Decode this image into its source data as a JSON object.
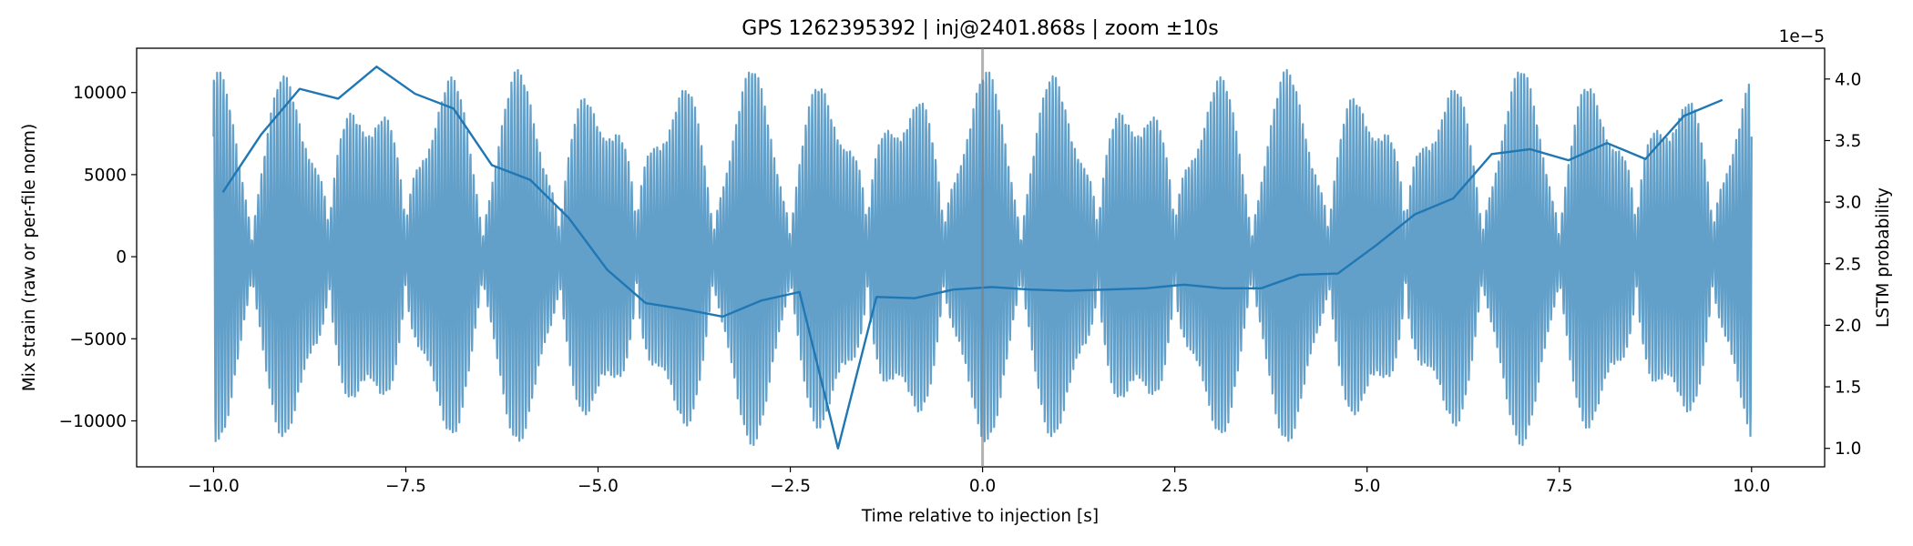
{
  "chart_data": {
    "type": "line",
    "title": "GPS 1262395392 | inj@2401.868s | zoom ±10s",
    "xlabel": "Time relative to injection [s]",
    "ylabel_left": "Mix strain (raw or per-file norm)",
    "ylabel_right": "LSTM probability",
    "right_offset_text": "1e−5",
    "xlim": [
      -11,
      10.95
    ],
    "ylim_left": [
      -12800,
      12700
    ],
    "ylim_right": [
      0.85,
      4.25
    ],
    "x_ticks": [
      -10,
      -7.5,
      -5,
      -2.5,
      0,
      2.5,
      5,
      7.5,
      10
    ],
    "x_tick_labels": [
      "−10.0",
      "−7.5",
      "−5.0",
      "−2.5",
      "0.0",
      "2.5",
      "5.0",
      "7.5",
      "10.0"
    ],
    "y_left_ticks": [
      10000,
      5000,
      0,
      -5000,
      -10000
    ],
    "y_left_tick_labels": [
      "10000",
      "5000",
      "0",
      "−5000",
      "−10000"
    ],
    "y_right_ticks": [
      4.0,
      3.5,
      3.0,
      2.5,
      2.0,
      1.5,
      1.0
    ],
    "y_right_tick_labels": [
      "4.0",
      "3.5",
      "3.0",
      "2.5",
      "2.0",
      "1.5",
      "1.0"
    ],
    "injection_marker_x": 0,
    "series": [
      {
        "name": "Mix strain",
        "axis": "left",
        "color": "#1f77b4",
        "opacity": 0.7,
        "x_range": [
          -10,
          10
        ],
        "approx_amplitude": 11500,
        "style": "oscillating"
      },
      {
        "name": "LSTM probability",
        "axis": "right",
        "color": "#1f77b4",
        "x": [
          -9.88,
          -9.38,
          -8.88,
          -8.38,
          -7.88,
          -7.38,
          -6.88,
          -6.38,
          -5.88,
          -5.38,
          -4.88,
          -4.38,
          -3.88,
          -3.38,
          -2.88,
          -2.38,
          -1.88,
          -1.38,
          -0.88,
          -0.38,
          0.12,
          0.62,
          1.12,
          1.62,
          2.12,
          2.62,
          3.12,
          3.62,
          4.12,
          4.62,
          5.12,
          5.62,
          6.12,
          6.62,
          7.12,
          7.62,
          8.12,
          8.62,
          9.12,
          9.62
        ],
        "values": [
          3.08,
          3.55,
          3.92,
          3.84,
          4.1,
          3.88,
          3.76,
          3.3,
          3.18,
          2.87,
          2.45,
          2.18,
          2.13,
          2.07,
          2.2,
          2.27,
          1.0,
          2.23,
          2.22,
          2.29,
          2.31,
          2.29,
          2.28,
          2.29,
          2.3,
          2.33,
          2.3,
          2.3,
          2.41,
          2.42,
          2.65,
          2.9,
          3.03,
          3.39,
          3.43,
          3.34,
          3.48,
          3.35,
          3.7,
          3.83
        ]
      }
    ]
  }
}
